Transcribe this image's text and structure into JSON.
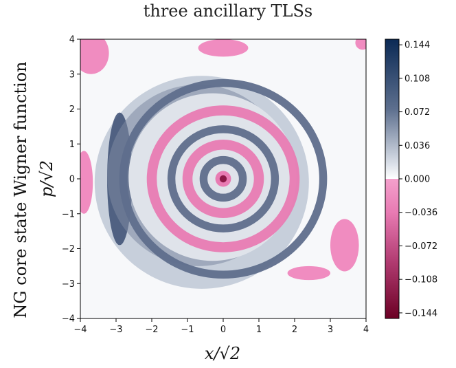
{
  "chart_data": {
    "type": "heatmap",
    "title": "three ancillary TLSs",
    "ylabel_outer": "NG core state Wigner function",
    "xlabel": "x/√2",
    "ylabel": "p/√2",
    "xlim": [
      -4,
      4
    ],
    "ylim": [
      -4,
      4
    ],
    "xticks": [
      "−4",
      "−3",
      "−2",
      "−1",
      "0",
      "1",
      "2",
      "3",
      "4"
    ],
    "yticks": [
      "4",
      "3",
      "2",
      "1",
      "0",
      "−1",
      "−2",
      "−3",
      "−4"
    ],
    "colorbar": {
      "min": -0.15,
      "max": 0.15,
      "ticks": [
        "0.144",
        "0.108",
        "0.072",
        "0.036",
        "0.000",
        "−0.036",
        "−0.072",
        "−0.108",
        "−0.144"
      ],
      "tick_values": [
        0.144,
        0.108,
        0.072,
        0.036,
        0.0,
        -0.036,
        -0.072,
        -0.108,
        -0.144
      ],
      "positive_color": "#0b2a55",
      "zero_color": "#ffffff",
      "negative_color": "#6b0024",
      "near_zero_negative_color": "#f08cc0"
    },
    "features": {
      "rings": [
        {
          "radius": 0.0,
          "sign": "negative",
          "peak": -0.144
        },
        {
          "radius": 0.55,
          "sign": "positive",
          "peak": 0.1
        },
        {
          "radius": 1.0,
          "sign": "negative",
          "peak": -0.06
        },
        {
          "radius": 1.45,
          "sign": "positive",
          "peak": 0.06
        },
        {
          "radius": 2.0,
          "sign": "negative",
          "peak": -0.04
        },
        {
          "radius": 2.8,
          "sign": "positive",
          "peak": 0.144
        }
      ]
    }
  }
}
